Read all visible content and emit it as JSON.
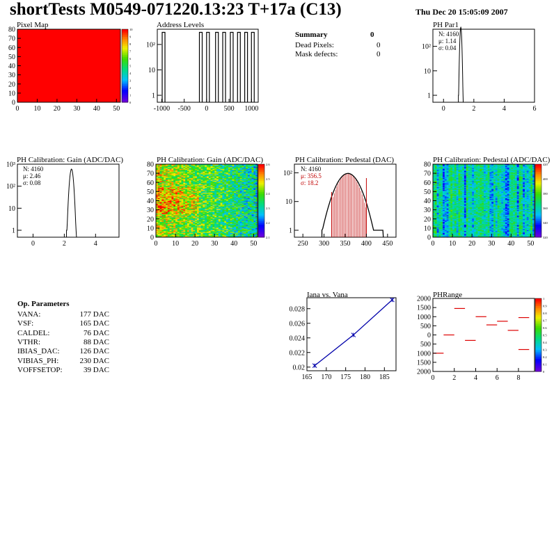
{
  "header": {
    "title": "shortTests M0549-071220.13:23 T+17a (C13)",
    "date": "Thu Dec 20 15:05:09 2007"
  },
  "summary": {
    "title": "Summary",
    "value": "0",
    "rows": [
      {
        "label": "Dead Pixels:",
        "value": "0"
      },
      {
        "label": "Mask defects:",
        "value": "0"
      }
    ]
  },
  "op_params": {
    "title": "Op. Parameters",
    "rows": [
      {
        "label": "VANA:",
        "value": "177 DAC"
      },
      {
        "label": "VSF:",
        "value": "165 DAC"
      },
      {
        "label": "CALDEL:",
        "value": "76 DAC"
      },
      {
        "label": "VTHR:",
        "value": "88 DAC"
      },
      {
        "label": "IBIAS_DAC:",
        "value": "126 DAC"
      },
      {
        "label": "VIBIAS_PH:",
        "value": "230 DAC"
      },
      {
        "label": "VOFFSETOP:",
        "value": "39 DAC"
      }
    ]
  },
  "chart_data": [
    {
      "id": "pixel-map",
      "type": "heatmap",
      "title": "Pixel Map",
      "xlim": [
        0,
        52
      ],
      "ylim": [
        0,
        80
      ],
      "xticks": [
        "0",
        "10",
        "20",
        "30",
        "40",
        "50"
      ],
      "yticks": [
        "0",
        "10",
        "20",
        "30",
        "40",
        "50",
        "60",
        "70",
        "80"
      ],
      "uniform_value": 10,
      "color": "#ff0000",
      "zticks": [
        "0",
        "1",
        "2",
        "3",
        "4",
        "5",
        "6",
        "7",
        "8",
        "9",
        "10"
      ]
    },
    {
      "id": "address-levels",
      "type": "bar",
      "title": "Address Levels",
      "xlim": [
        -1100,
        1150
      ],
      "yscale": "log",
      "xticks": [
        "-1000",
        "-500",
        "0",
        "500",
        "1000"
      ],
      "yticks": [
        "1",
        "10",
        "10²"
      ],
      "peaks_x": [
        -960,
        -130,
        30,
        230,
        390,
        560,
        720,
        880,
        1030
      ],
      "peak_height": 300
    },
    {
      "id": "ph-par1",
      "type": "bar",
      "title": "PH Par1",
      "xlim": [
        -0.7,
        6
      ],
      "yscale": "log",
      "xticks": [
        "0",
        "2",
        "4",
        "6"
      ],
      "yticks": [
        "1",
        "10",
        "10²"
      ],
      "stats": {
        "n": "N: 4160",
        "mean": "μ: 1.14",
        "sigma": "σ: 0.04"
      },
      "mean": 1.14,
      "sigma": 0.04,
      "peak": 600
    },
    {
      "id": "gain-hist",
      "type": "bar",
      "title": "PH Calibration: Gain (ADC/DAC)",
      "xlim": [
        -1,
        5.5
      ],
      "yscale": "log",
      "xticks": [
        "0",
        "2",
        "4"
      ],
      "yticks": [
        "1",
        "10",
        "10²",
        "10³"
      ],
      "stats": {
        "n": "N: 4160",
        "mean": "μ: 2.46",
        "sigma": "σ: 0.08"
      },
      "mean": 2.46,
      "sigma": 0.08,
      "peak": 600
    },
    {
      "id": "gain-map",
      "type": "heatmap",
      "title": "PH Calibration: Gain (ADC/DAC)",
      "xlim": [
        0,
        52
      ],
      "ylim": [
        0,
        80
      ],
      "xticks": [
        "0",
        "10",
        "20",
        "30",
        "40",
        "50"
      ],
      "yticks": [
        "0",
        "10",
        "20",
        "30",
        "40",
        "50",
        "60",
        "70",
        "80"
      ],
      "zticks": [
        "2.1",
        "2.2",
        "2.3",
        "2.4",
        "2.5",
        "2.6"
      ]
    },
    {
      "id": "pedestal-hist",
      "type": "bar",
      "title": "PH Calibration: Pedestal (DAC)",
      "xlim": [
        230,
        470
      ],
      "yscale": "log",
      "xticks": [
        "250",
        "300",
        "350",
        "400",
        "450"
      ],
      "yticks": [
        "1",
        "10",
        "10²"
      ],
      "stats": {
        "n": "N: 4160",
        "mean": "μ: 356.5",
        "sigma": "σ: 18.2"
      },
      "mean": 356.5,
      "sigma": 18.2,
      "peak": 95,
      "fit_range": [
        318,
        400
      ]
    },
    {
      "id": "pedestal-map",
      "type": "heatmap",
      "title": "PH Calibration: Pedestal (ADC/DAC)",
      "xlim": [
        0,
        52
      ],
      "ylim": [
        0,
        80
      ],
      "xticks": [
        "0",
        "10",
        "20",
        "30",
        "40",
        "50"
      ],
      "yticks": [
        "0",
        "10",
        "20",
        "30",
        "40",
        "50",
        "60",
        "70",
        "80"
      ],
      "zticks": [
        "320",
        "340",
        "360",
        "380",
        "400",
        "420"
      ]
    },
    {
      "id": "iana-vana",
      "type": "line",
      "title": "Iana vs. Vana",
      "xlim": [
        165,
        188
      ],
      "ylim": [
        0.0195,
        0.0295
      ],
      "xticks": [
        "165",
        "170",
        "175",
        "180",
        "185"
      ],
      "yticks": [
        "0.02",
        "0.022",
        "0.024",
        "0.026",
        "0.028"
      ],
      "x": [
        167,
        177,
        187
      ],
      "y": [
        0.0202,
        0.0244,
        0.0292
      ]
    },
    {
      "id": "ph-range",
      "type": "scatter",
      "title": "PHRange",
      "xlim": [
        0,
        9.5
      ],
      "ylim": [
        -2000,
        2000
      ],
      "xticks": [
        "0",
        "2",
        "4",
        "6",
        "8"
      ],
      "yticks": [
        "2000",
        "1500",
        "1000",
        "500",
        "0",
        "500",
        "1000",
        "1500",
        "2000"
      ],
      "zticks": [
        "0",
        "0.1",
        "0.2",
        "0.3",
        "0.4",
        "0.5",
        "0.6",
        "0.7",
        "0.8",
        "0.9",
        "1"
      ],
      "x": [
        0.5,
        1.5,
        2.5,
        3.5,
        4.5,
        5.5,
        6.5,
        7.5,
        8.5,
        8.5
      ],
      "y": [
        -1000,
        0,
        1450,
        -300,
        1000,
        550,
        750,
        250,
        950,
        -800
      ]
    }
  ]
}
